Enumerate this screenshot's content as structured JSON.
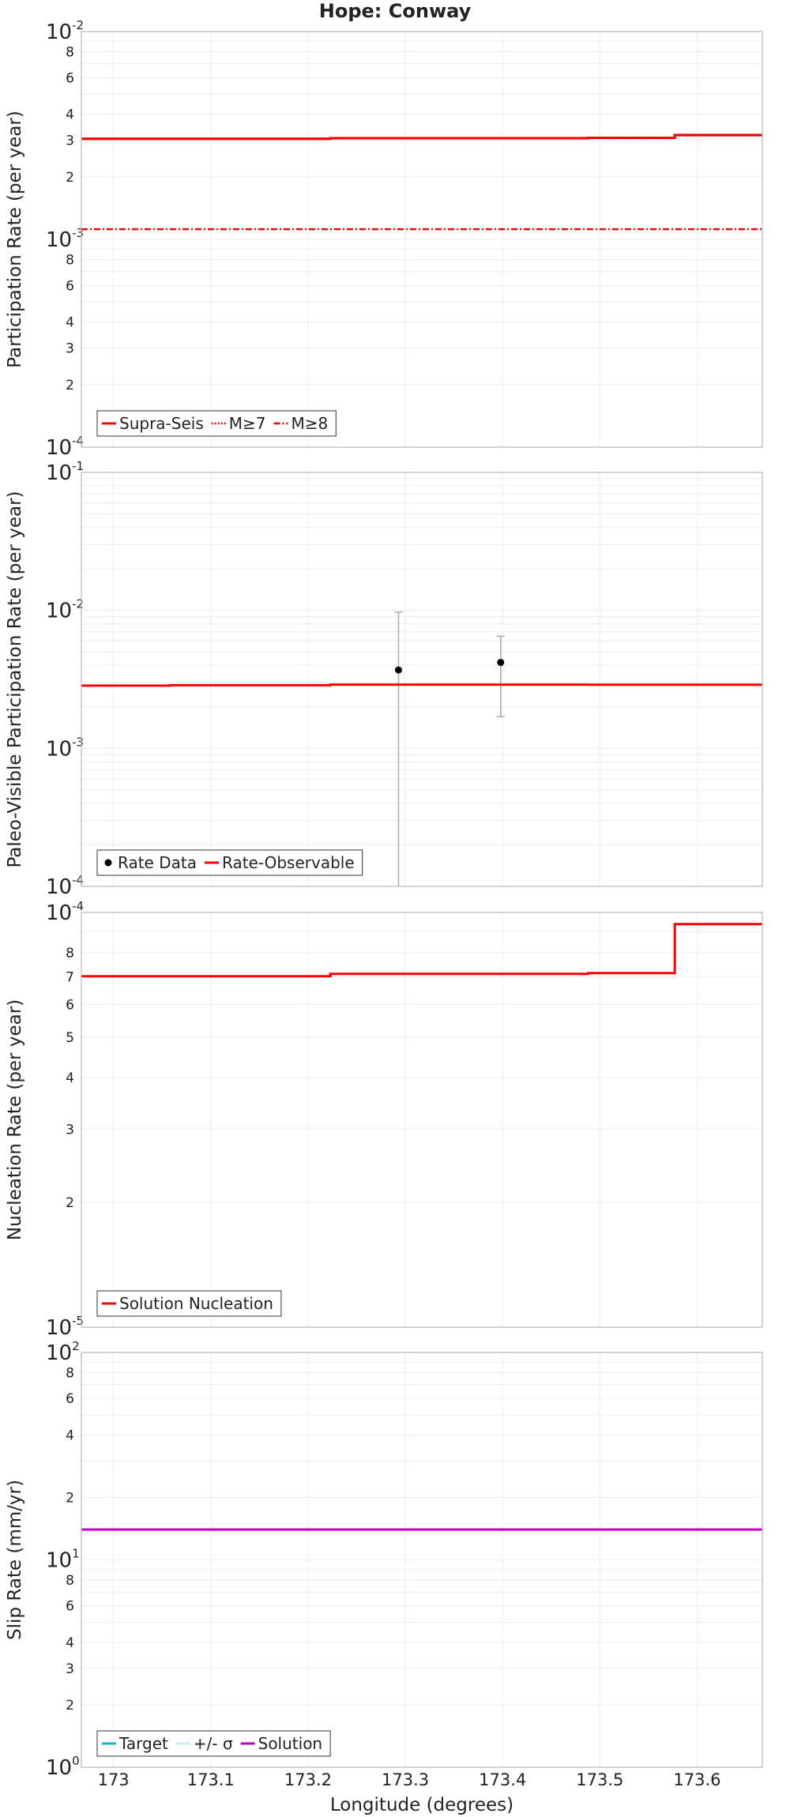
{
  "figure": {
    "title": "Hope: Conway"
  },
  "x_axis": {
    "label": "Longitude (degrees)",
    "range": [
      172.967,
      173.667
    ],
    "tick_values": [
      173.0,
      173.1,
      173.2,
      173.3,
      173.4,
      173.5,
      173.6
    ],
    "tick_labels": [
      "173",
      "173.1",
      "173.2",
      "173.3",
      "173.4",
      "173.5",
      "173.6"
    ]
  },
  "colors": {
    "red": "#ff0000",
    "cyan": "#19b2c8",
    "light_cyan": "#c8f0f5",
    "magenta": "#c000c0",
    "black": "#000000",
    "error_bar": "#aaaaaa",
    "grid": "#ececec",
    "axis": "#b8b8b8"
  },
  "chart_data": [
    {
      "type": "line",
      "ylabel": "Participation Rate (per year)",
      "yscale": "log",
      "ylim": [
        0.0001,
        0.01
      ],
      "y_major_ticks": [
        {
          "base": "10",
          "exp": "-4"
        },
        {
          "base": "10",
          "exp": "-3"
        },
        {
          "base": "10",
          "exp": "-2"
        }
      ],
      "y_minor_labels": [
        "2",
        "3",
        "4",
        "6",
        "8",
        "2",
        "3",
        "4",
        "6",
        "8"
      ],
      "legend": [
        "Supra-Seis",
        "M≥7",
        "M≥8"
      ],
      "legend_position": "bottom-left",
      "series": [
        {
          "name": "Supra-Seis",
          "style": "solid",
          "steps": [
            [
              172.967,
              173.223,
              0.00305
            ],
            [
              173.223,
              173.488,
              0.00307
            ],
            [
              173.488,
              173.577,
              0.00308
            ],
            [
              173.577,
              173.667,
              0.00318
            ]
          ]
        },
        {
          "name": "M≥7",
          "style": "dotted",
          "steps": [
            [
              172.967,
              173.223,
              0.00304
            ],
            [
              173.223,
              173.488,
              0.00306
            ],
            [
              173.488,
              173.577,
              0.00307
            ],
            [
              173.577,
              173.667,
              0.00316
            ]
          ]
        },
        {
          "name": "M≥8",
          "style": "dashdot",
          "steps": [
            [
              172.967,
              173.667,
              0.00112
            ]
          ]
        }
      ]
    },
    {
      "type": "line",
      "ylabel": "Paleo-Visible Participation Rate (per year)",
      "yscale": "log",
      "ylim": [
        0.0001,
        0.1
      ],
      "y_major_ticks": [
        {
          "base": "10",
          "exp": "-4"
        },
        {
          "base": "10",
          "exp": "-3"
        },
        {
          "base": "10",
          "exp": "-2"
        },
        {
          "base": "10",
          "exp": "-1"
        }
      ],
      "legend": [
        "Rate Data",
        "Rate-Observable"
      ],
      "legend_position": "bottom-left",
      "points": [
        {
          "x": 173.293,
          "y": 0.0037,
          "low": 0.0001,
          "high": 0.0097
        },
        {
          "x": 173.398,
          "y": 0.0042,
          "low": 0.0017,
          "high": 0.0065
        }
      ],
      "series": [
        {
          "name": "Rate-Observable",
          "style": "solid",
          "steps": [
            [
              172.967,
              173.058,
              0.00285
            ],
            [
              173.058,
              173.223,
              0.00287
            ],
            [
              173.223,
              173.488,
              0.0029
            ],
            [
              173.488,
              173.667,
              0.00289
            ]
          ]
        }
      ]
    },
    {
      "type": "line",
      "ylabel": "Nucleation Rate (per year)",
      "yscale": "log",
      "ylim": [
        1e-05,
        0.0001
      ],
      "y_major_ticks": [
        {
          "base": "10",
          "exp": "-5"
        },
        {
          "base": "10",
          "exp": "-4"
        }
      ],
      "y_minor_labels": [
        "2",
        "3",
        "4",
        "5",
        "6",
        "7",
        "8"
      ],
      "legend": [
        "Solution Nucleation"
      ],
      "legend_position": "bottom-left",
      "series": [
        {
          "name": "Solution Nucleation",
          "style": "solid",
          "steps": [
            [
              172.967,
              173.223,
              7.02e-05
            ],
            [
              173.223,
              173.488,
              7.11e-05
            ],
            [
              173.488,
              173.577,
              7.14e-05
            ],
            [
              173.577,
              173.667,
              9.37e-05
            ]
          ]
        }
      ]
    },
    {
      "type": "line",
      "ylabel": "Slip Rate (mm/yr)",
      "yscale": "log",
      "ylim": [
        1,
        100
      ],
      "y_major_ticks": [
        {
          "base": "10",
          "exp": "0"
        },
        {
          "base": "10",
          "exp": "1"
        },
        {
          "base": "10",
          "exp": "2"
        }
      ],
      "y_minor_labels": [
        "2",
        "3",
        "4",
        "6",
        "8",
        "2",
        "4",
        "6",
        "8"
      ],
      "legend": [
        "Target",
        "+/- σ",
        "Solution"
      ],
      "legend_position": "bottom-left",
      "series": [
        {
          "name": "Solution",
          "style": "solid",
          "steps": [
            [
              172.967,
              173.667,
              14.0
            ]
          ]
        }
      ]
    }
  ]
}
